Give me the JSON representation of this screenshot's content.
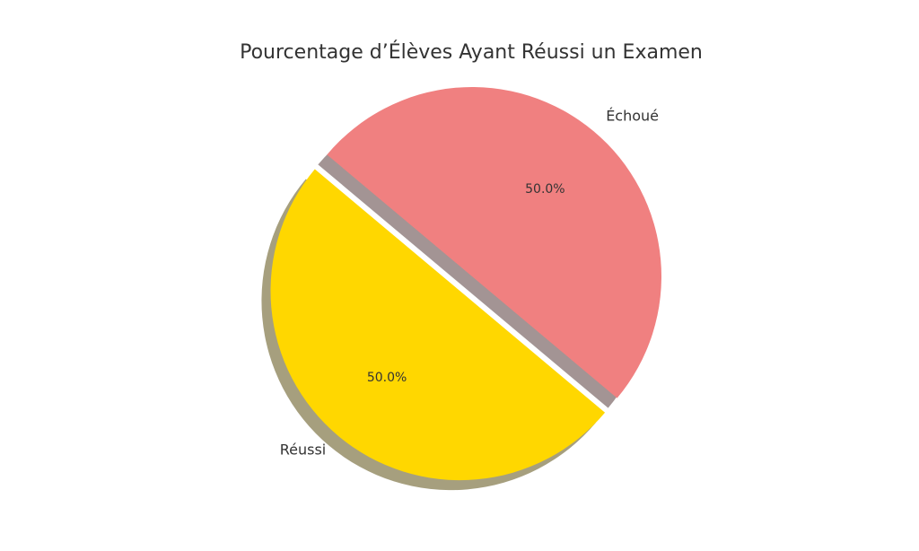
{
  "chart_data": {
    "type": "pie",
    "title": "Pourcentage d’Élèves Ayant Réussi un Examen",
    "slices": [
      {
        "label": "Réussi",
        "value": 50.0,
        "pct_label": "50.0%",
        "color": "#FFD700",
        "shadow_color": "#A69F7E",
        "exploded": true
      },
      {
        "label": "Échoué",
        "value": 50.0,
        "pct_label": "50.0%",
        "color": "#F08080",
        "shadow_color": "#A39494",
        "exploded": false
      }
    ],
    "start_angle_deg": 140,
    "shadow": true,
    "legend": "none"
  }
}
